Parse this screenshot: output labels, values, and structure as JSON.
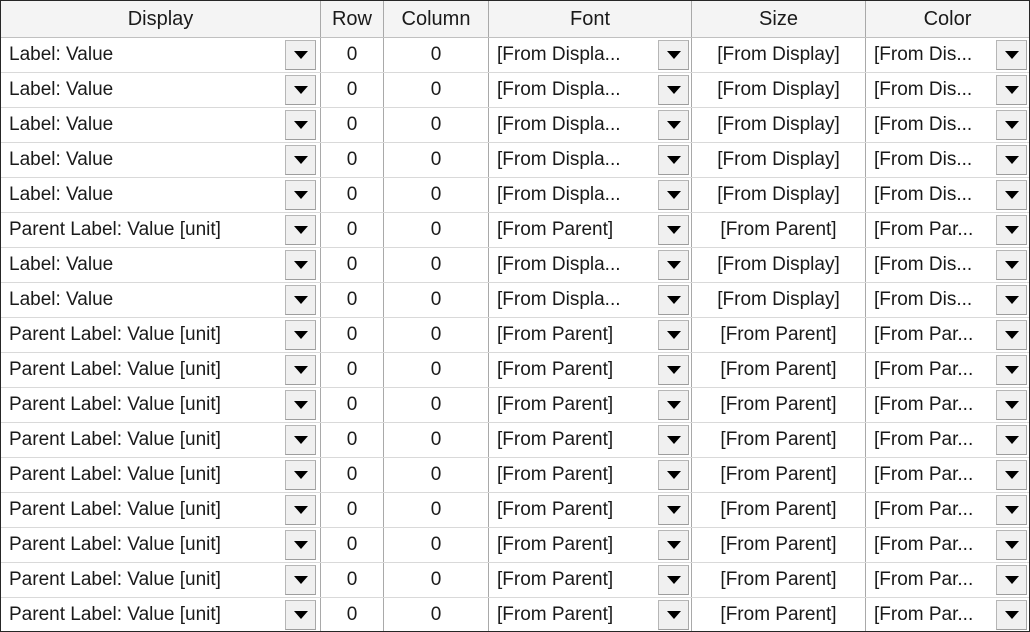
{
  "colors": {
    "outer_border": "#262626",
    "header_background": "#f4f4f4",
    "vertical_gridline": "#a9a9a9",
    "horizontal_gridline": "#d9d9d9",
    "dropdown_button_background": "#f0f0f0",
    "dropdown_button_border": "#b6b6b6",
    "dropdown_arrow": "#000000",
    "text": "#1a1a1a"
  },
  "header": {
    "columns": [
      "Display",
      "Row",
      "Column",
      "Font",
      "Size",
      "Color"
    ]
  },
  "icons": {
    "dropdown": "chevron-down-icon"
  },
  "rows": [
    {
      "display": "Label: Value",
      "row": "0",
      "column": "0",
      "font": "[From Displa...",
      "size": "[From Display]",
      "color": "[From Dis..."
    },
    {
      "display": "Label: Value",
      "row": "0",
      "column": "0",
      "font": "[From Displa...",
      "size": "[From Display]",
      "color": "[From Dis..."
    },
    {
      "display": "Label: Value",
      "row": "0",
      "column": "0",
      "font": "[From Displa...",
      "size": "[From Display]",
      "color": "[From Dis..."
    },
    {
      "display": "Label: Value",
      "row": "0",
      "column": "0",
      "font": "[From Displa...",
      "size": "[From Display]",
      "color": "[From Dis..."
    },
    {
      "display": "Label: Value",
      "row": "0",
      "column": "0",
      "font": "[From Displa...",
      "size": "[From Display]",
      "color": "[From Dis..."
    },
    {
      "display": "Parent Label: Value [unit]",
      "row": "0",
      "column": "0",
      "font": "[From Parent]",
      "size": "[From Parent]",
      "color": "[From Par..."
    },
    {
      "display": "Label: Value",
      "row": "0",
      "column": "0",
      "font": "[From Displa...",
      "size": "[From Display]",
      "color": "[From Dis..."
    },
    {
      "display": "Label: Value",
      "row": "0",
      "column": "0",
      "font": "[From Displa...",
      "size": "[From Display]",
      "color": "[From Dis..."
    },
    {
      "display": "Parent Label: Value [unit]",
      "row": "0",
      "column": "0",
      "font": "[From Parent]",
      "size": "[From Parent]",
      "color": "[From Par..."
    },
    {
      "display": "Parent Label: Value [unit]",
      "row": "0",
      "column": "0",
      "font": "[From Parent]",
      "size": "[From Parent]",
      "color": "[From Par..."
    },
    {
      "display": "Parent Label: Value [unit]",
      "row": "0",
      "column": "0",
      "font": "[From Parent]",
      "size": "[From Parent]",
      "color": "[From Par..."
    },
    {
      "display": "Parent Label: Value [unit]",
      "row": "0",
      "column": "0",
      "font": "[From Parent]",
      "size": "[From Parent]",
      "color": "[From Par..."
    },
    {
      "display": "Parent Label: Value [unit]",
      "row": "0",
      "column": "0",
      "font": "[From Parent]",
      "size": "[From Parent]",
      "color": "[From Par..."
    },
    {
      "display": "Parent Label: Value [unit]",
      "row": "0",
      "column": "0",
      "font": "[From Parent]",
      "size": "[From Parent]",
      "color": "[From Par..."
    },
    {
      "display": "Parent Label: Value [unit]",
      "row": "0",
      "column": "0",
      "font": "[From Parent]",
      "size": "[From Parent]",
      "color": "[From Par..."
    },
    {
      "display": "Parent Label: Value [unit]",
      "row": "0",
      "column": "0",
      "font": "[From Parent]",
      "size": "[From Parent]",
      "color": "[From Par..."
    },
    {
      "display": "Parent Label: Value [unit]",
      "row": "0",
      "column": "0",
      "font": "[From Parent]",
      "size": "[From Parent]",
      "color": "[From Par..."
    }
  ]
}
